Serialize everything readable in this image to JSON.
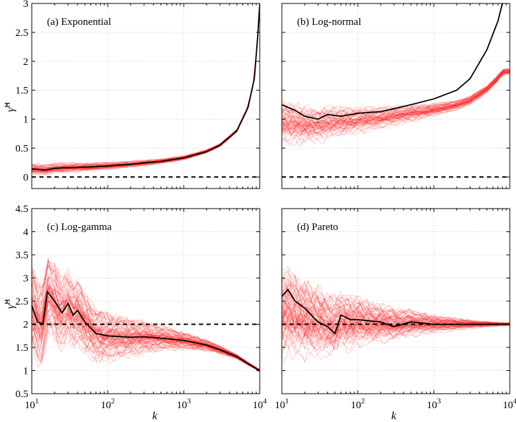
{
  "figure": {
    "xlabel": "k",
    "ylabel": "γ̂H",
    "ylabel_main": "γ̂",
    "ylabel_sup": "H",
    "xtick_labels": [
      "10",
      "10",
      "10",
      "10"
    ],
    "xtick_exponents": [
      "1",
      "2",
      "3",
      "4"
    ]
  },
  "chart_data": [
    {
      "type": "line",
      "title": "(a) Exponential",
      "xscale": "log",
      "xlim": [
        10,
        10000
      ],
      "ylim": [
        -0.2,
        3
      ],
      "yticks": [
        0,
        0.5,
        1,
        1.5,
        2,
        2.5,
        3
      ],
      "ytick_labels": [
        "0",
        "0.5",
        "1",
        "1.5",
        "2",
        "2.5",
        "3"
      ],
      "reference_line": 0,
      "highlight": {
        "x": [
          10,
          15,
          20,
          30,
          50,
          100,
          200,
          500,
          1000,
          2000,
          3000,
          5000,
          7000,
          8500,
          9500,
          10000
        ],
        "y": [
          0.14,
          0.12,
          0.15,
          0.16,
          0.17,
          0.19,
          0.22,
          0.27,
          0.33,
          0.44,
          0.55,
          0.8,
          1.2,
          1.7,
          2.5,
          3.0
        ]
      },
      "ensemble": {
        "runs": 60,
        "spread_start": 0.06,
        "spread_end": 0.02
      },
      "legend": "none"
    },
    {
      "type": "line",
      "title": "(b) Log-normal",
      "xscale": "log",
      "xlim": [
        10,
        10000
      ],
      "ylim": [
        -0.2,
        3
      ],
      "yticks": [
        0,
        0.5,
        1,
        1.5,
        2,
        2.5,
        3
      ],
      "ytick_labels": [
        "0",
        "0.5",
        "1",
        "1.5",
        "2",
        "2.5",
        "3"
      ],
      "reference_line": 0,
      "highlight": {
        "x": [
          10,
          15,
          20,
          30,
          40,
          60,
          100,
          200,
          300,
          500,
          1000,
          2000,
          3000,
          5000,
          7000,
          8000
        ],
        "y": [
          1.25,
          1.15,
          1.05,
          1.0,
          1.08,
          1.05,
          1.1,
          1.13,
          1.18,
          1.25,
          1.35,
          1.5,
          1.7,
          2.2,
          2.7,
          3.0
        ]
      },
      "ensemble": {
        "runs": 60,
        "spread_start": 0.3,
        "spread_end": 0.05
      },
      "legend": "none"
    },
    {
      "type": "line",
      "title": "(c) Log-gamma",
      "xscale": "log",
      "xlim": [
        10,
        10000
      ],
      "ylim": [
        0.5,
        4.5
      ],
      "yticks": [
        0.5,
        1,
        1.5,
        2,
        2.5,
        3,
        3.5,
        4,
        4.5
      ],
      "ytick_labels": [
        "0.5",
        "1",
        "1.5",
        "2",
        "2.5",
        "3",
        "3.5",
        "4",
        "4.5"
      ],
      "reference_line": 2,
      "highlight": {
        "x": [
          10,
          12,
          14,
          16,
          20,
          25,
          30,
          35,
          40,
          50,
          70,
          100,
          200,
          300,
          500,
          1000,
          2000,
          3000,
          5000,
          7000,
          10000
        ],
        "y": [
          2.4,
          2.05,
          2.0,
          2.7,
          2.5,
          2.25,
          2.45,
          2.2,
          2.3,
          2.05,
          1.8,
          1.75,
          1.72,
          1.73,
          1.7,
          1.65,
          1.55,
          1.45,
          1.3,
          1.15,
          1.0
        ]
      },
      "ensemble": {
        "runs": 80,
        "spread_start": 0.75,
        "spread_end": 0.02
      },
      "legend": "none"
    },
    {
      "type": "line",
      "title": "(d) Pareto",
      "xscale": "log",
      "xlim": [
        10,
        10000
      ],
      "ylim": [
        0.5,
        4.5
      ],
      "yticks": [
        0.5,
        1,
        1.5,
        2,
        2.5,
        3,
        3.5,
        4,
        4.5
      ],
      "ytick_labels": [
        "0.5",
        "1",
        "1.5",
        "2",
        "2.5",
        "3",
        "3.5",
        "4",
        "4.5"
      ],
      "reference_line": 2,
      "highlight": {
        "x": [
          10,
          12,
          15,
          20,
          30,
          40,
          50,
          55,
          60,
          80,
          100,
          200,
          300,
          500,
          1000,
          2000,
          5000,
          10000
        ],
        "y": [
          2.6,
          2.75,
          2.5,
          2.35,
          2.05,
          1.95,
          1.8,
          2.0,
          2.2,
          2.1,
          2.1,
          2.05,
          1.95,
          2.05,
          2.0,
          2.0,
          2.0,
          2.0
        ]
      },
      "ensemble": {
        "runs": 80,
        "spread_start": 0.8,
        "spread_end": 0.03
      },
      "legend": "none"
    }
  ]
}
